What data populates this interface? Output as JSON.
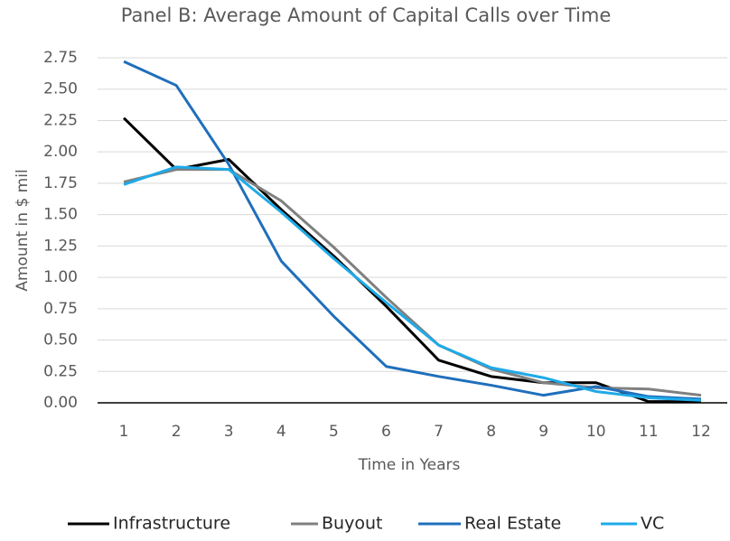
{
  "chart_data": {
    "type": "line",
    "title": "Panel B: Average Amount of Capital Calls over Time",
    "x_label": "Time in Years",
    "y_label": "Amount in $ mil",
    "categories": [
      "1",
      "2",
      "3",
      "4",
      "5",
      "6",
      "7",
      "8",
      "9",
      "10",
      "11",
      "12"
    ],
    "series": [
      {
        "name": "Infrastructure",
        "color": "#000000",
        "values": [
          2.27,
          1.86,
          1.94,
          1.54,
          1.17,
          0.77,
          0.34,
          0.21,
          0.16,
          0.16,
          0.01,
          0.01
        ]
      },
      {
        "name": "Buyout",
        "color": "#808080",
        "values": [
          1.76,
          1.86,
          1.86,
          1.61,
          1.24,
          0.84,
          0.46,
          0.27,
          0.16,
          0.12,
          0.11,
          0.06
        ]
      },
      {
        "name": "Real Estate",
        "color": "#1f6fbb",
        "values": [
          2.72,
          2.53,
          1.9,
          1.13,
          0.69,
          0.29,
          0.21,
          0.14,
          0.06,
          0.13,
          0.05,
          0.03
        ]
      },
      {
        "name": "VC",
        "color": "#1eaae8",
        "values": [
          1.74,
          1.88,
          1.86,
          1.52,
          1.15,
          0.8,
          0.46,
          0.28,
          0.2,
          0.09,
          0.04,
          0.02
        ]
      }
    ],
    "ylim": [
      0,
      2.75
    ],
    "yticks": [
      {
        "value": 0,
        "label": "0.00"
      },
      {
        "value": 0.25,
        "label": "0.25"
      },
      {
        "value": 0.5,
        "label": "0.50"
      },
      {
        "value": 0.75,
        "label": "0.75"
      },
      {
        "value": 1,
        "label": "1.00"
      },
      {
        "value": 1.25,
        "label": "1.25"
      },
      {
        "value": 1.5,
        "label": "1.50"
      },
      {
        "value": 1.75,
        "label": "1.75"
      },
      {
        "value": 2,
        "label": "2.00"
      },
      {
        "value": 2.25,
        "label": "2.25"
      },
      {
        "value": 2.5,
        "label": "2.50"
      },
      {
        "value": 2.75,
        "label": "2.75"
      }
    ],
    "grid": true,
    "legend": "bottom"
  }
}
